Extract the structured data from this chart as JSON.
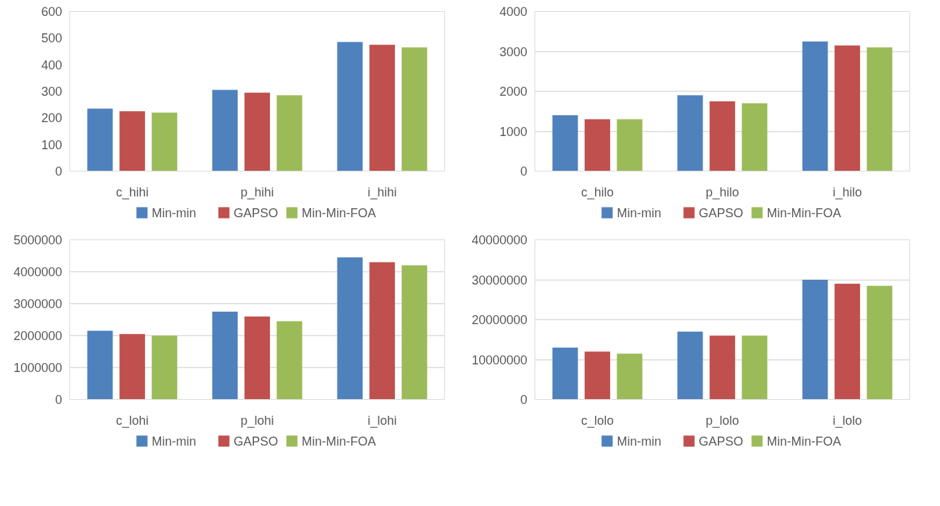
{
  "chart_data": [
    {
      "type": "bar",
      "categories": [
        "c_hihi",
        "p_hihi",
        "i_hihi"
      ],
      "ylim": [
        0,
        600
      ],
      "yticks": [
        0,
        100,
        200,
        300,
        400,
        500,
        600
      ],
      "grid": false,
      "legend": "bottom",
      "series": [
        {
          "name": "Min-min",
          "color": "#4f81bd",
          "values": [
            235,
            305,
            485
          ]
        },
        {
          "name": "GAPSO",
          "color": "#c0504d",
          "values": [
            225,
            295,
            475
          ]
        },
        {
          "name": "Min-Min-FOA",
          "color": "#9bbb59",
          "values": [
            220,
            285,
            465
          ]
        }
      ]
    },
    {
      "type": "bar",
      "categories": [
        "c_hilo",
        "p_hilo",
        "i_hilo"
      ],
      "ylim": [
        0,
        4000
      ],
      "yticks": [
        0,
        1000,
        2000,
        3000,
        4000
      ],
      "grid": "y",
      "legend": "bottom",
      "series": [
        {
          "name": "Min-min",
          "color": "#4f81bd",
          "values": [
            1400,
            1900,
            3250
          ]
        },
        {
          "name": "GAPSO",
          "color": "#c0504d",
          "values": [
            1300,
            1750,
            3150
          ]
        },
        {
          "name": "Min-Min-FOA",
          "color": "#9bbb59",
          "values": [
            1300,
            1700,
            3100
          ]
        }
      ]
    },
    {
      "type": "bar",
      "categories": [
        "c_lohi",
        "p_lohi",
        "i_lohi"
      ],
      "ylim": [
        0,
        5000000
      ],
      "yticks": [
        0,
        1000000,
        2000000,
        3000000,
        4000000,
        5000000
      ],
      "grid": "y",
      "legend": "bottom",
      "series": [
        {
          "name": "Min-min",
          "color": "#4f81bd",
          "values": [
            2150000,
            2750000,
            4450000
          ]
        },
        {
          "name": "GAPSO",
          "color": "#c0504d",
          "values": [
            2050000,
            2600000,
            4300000
          ]
        },
        {
          "name": "Min-Min-FOA",
          "color": "#9bbb59",
          "values": [
            2000000,
            2450000,
            4200000
          ]
        }
      ]
    },
    {
      "type": "bar",
      "categories": [
        "c_lolo",
        "p_lolo",
        "i_lolo"
      ],
      "ylim": [
        0,
        40000000
      ],
      "yticks": [
        0,
        10000000,
        20000000,
        30000000,
        40000000
      ],
      "grid": "y",
      "legend": "bottom",
      "series": [
        {
          "name": "Min-min",
          "color": "#4f81bd",
          "values": [
            13000000,
            17000000,
            30000000
          ]
        },
        {
          "name": "GAPSO",
          "color": "#c0504d",
          "values": [
            12000000,
            16000000,
            29000000
          ]
        },
        {
          "name": "Min-Min-FOA",
          "color": "#9bbb59",
          "values": [
            11500000,
            16000000,
            28500000
          ]
        }
      ]
    }
  ]
}
